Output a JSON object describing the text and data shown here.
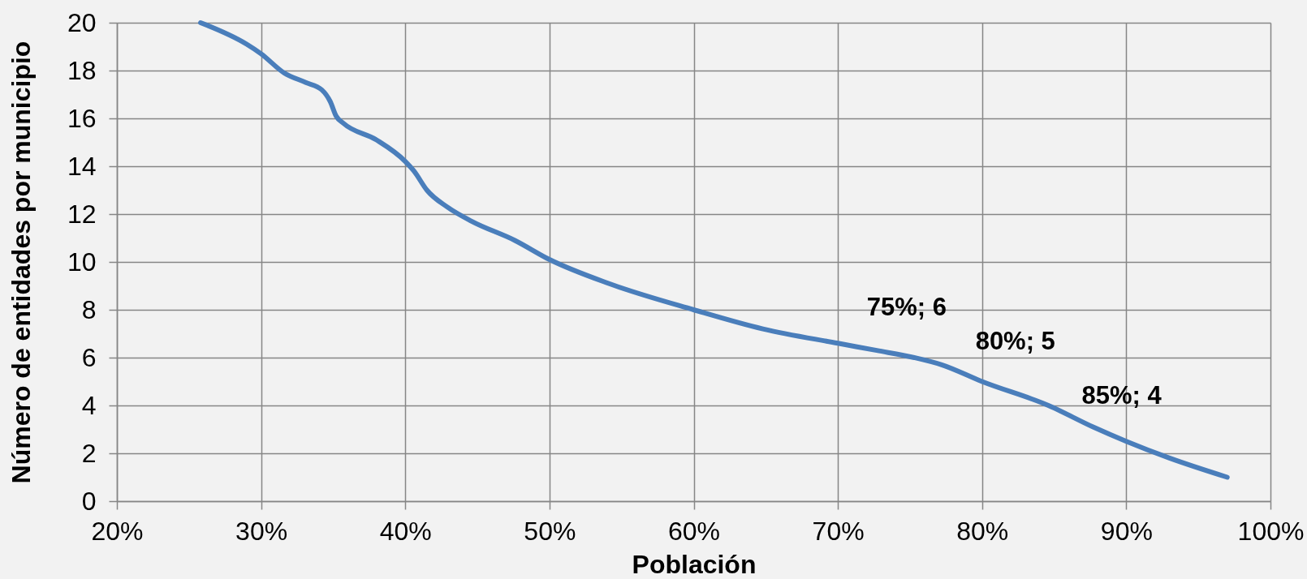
{
  "chart_data": {
    "type": "line",
    "xlabel": "Población",
    "ylabel": "Número de entidades por municipio",
    "x": [
      25.8,
      29,
      30,
      31.6,
      33.1,
      34.2,
      34.8,
      35.2,
      35.7,
      38,
      40,
      40.6,
      41.5,
      42.9,
      44.6,
      47.6,
      50,
      54.1,
      60,
      64.8,
      70,
      72.7,
      75.3,
      77.2,
      80,
      84.6,
      87.7,
      90,
      93,
      97
    ],
    "series": [
      {
        "color": "#4a7ebb",
        "values": [
          20,
          19.1,
          18.7,
          17.9,
          17.5,
          17.2,
          16.7,
          16.1,
          15.8,
          15.1,
          14.2,
          13.8,
          13,
          12.3,
          11.7,
          10.9,
          10.1,
          9.1,
          8,
          7.2,
          6.6,
          6.3,
          6,
          5.7,
          5,
          4,
          3.1,
          2.5,
          1.8,
          1
        ]
      }
    ],
    "xlim": [
      20,
      100
    ],
    "xticks": [
      {
        "value": 20,
        "label": "20%"
      },
      {
        "value": 30,
        "label": "30%"
      },
      {
        "value": 40,
        "label": "40%"
      },
      {
        "value": 50,
        "label": "50%"
      },
      {
        "value": 60,
        "label": "60%"
      },
      {
        "value": 70,
        "label": "70%"
      },
      {
        "value": 80,
        "label": "80%"
      },
      {
        "value": 90,
        "label": "90%"
      },
      {
        "value": 100,
        "label": "100%"
      }
    ],
    "ylim": [
      0,
      20
    ],
    "yticks": [
      0,
      2,
      4,
      6,
      8,
      10,
      12,
      14,
      16,
      18,
      20
    ],
    "grid": true,
    "line_style": "solid",
    "annotations": [
      {
        "text": "75%; 6",
        "x": 75,
        "y": 6
      },
      {
        "text": "80%; 5",
        "x": 80,
        "y": 5
      },
      {
        "text": "85%; 4",
        "x": 85,
        "y": 4
      }
    ]
  }
}
